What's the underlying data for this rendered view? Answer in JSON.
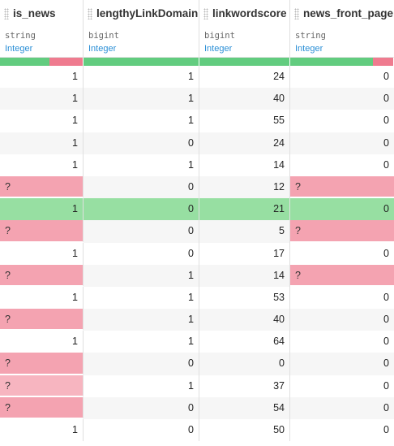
{
  "colors": {
    "valid": "#62cc7f",
    "invalid": "#ef7b8f",
    "invalid_cell": "#f4a3b1",
    "selected_row": "#97dfa2",
    "meaning": "#2b8fd6"
  },
  "columns": [
    {
      "name": "is_news",
      "storage": "string",
      "meaning": "Integer",
      "valid_fraction": 0.6,
      "align": "right"
    },
    {
      "name": "lengthyLinkDomain",
      "storage": "bigint",
      "meaning": "Integer",
      "valid_fraction": 1.0,
      "align": "right"
    },
    {
      "name": "linkwordscore",
      "storage": "bigint",
      "meaning": "Integer",
      "valid_fraction": 1.0,
      "align": "right"
    },
    {
      "name": "news_front_page",
      "storage": "string",
      "meaning": "Integer",
      "valid_fraction": 0.8,
      "align": "right"
    }
  ],
  "rows": [
    [
      "1",
      "1",
      "24",
      "0"
    ],
    [
      "1",
      "1",
      "40",
      "0"
    ],
    [
      "1",
      "1",
      "55",
      "0"
    ],
    [
      "1",
      "0",
      "24",
      "0"
    ],
    [
      "1",
      "1",
      "14",
      "0"
    ],
    [
      "?",
      "0",
      "12",
      "?"
    ],
    [
      "1",
      "0",
      "21",
      "0"
    ],
    [
      "?",
      "0",
      "5",
      "?"
    ],
    [
      "1",
      "0",
      "17",
      "0"
    ],
    [
      "?",
      "1",
      "14",
      "?"
    ],
    [
      "1",
      "1",
      "53",
      "0"
    ],
    [
      "?",
      "1",
      "40",
      "0"
    ],
    [
      "1",
      "1",
      "64",
      "0"
    ],
    [
      "?",
      "0",
      "0",
      "0"
    ],
    [
      "?",
      "1",
      "37",
      "0"
    ],
    [
      "?",
      "0",
      "54",
      "0"
    ],
    [
      "1",
      "0",
      "50",
      "0"
    ]
  ],
  "selected_row": 6,
  "hover_row": 14
}
